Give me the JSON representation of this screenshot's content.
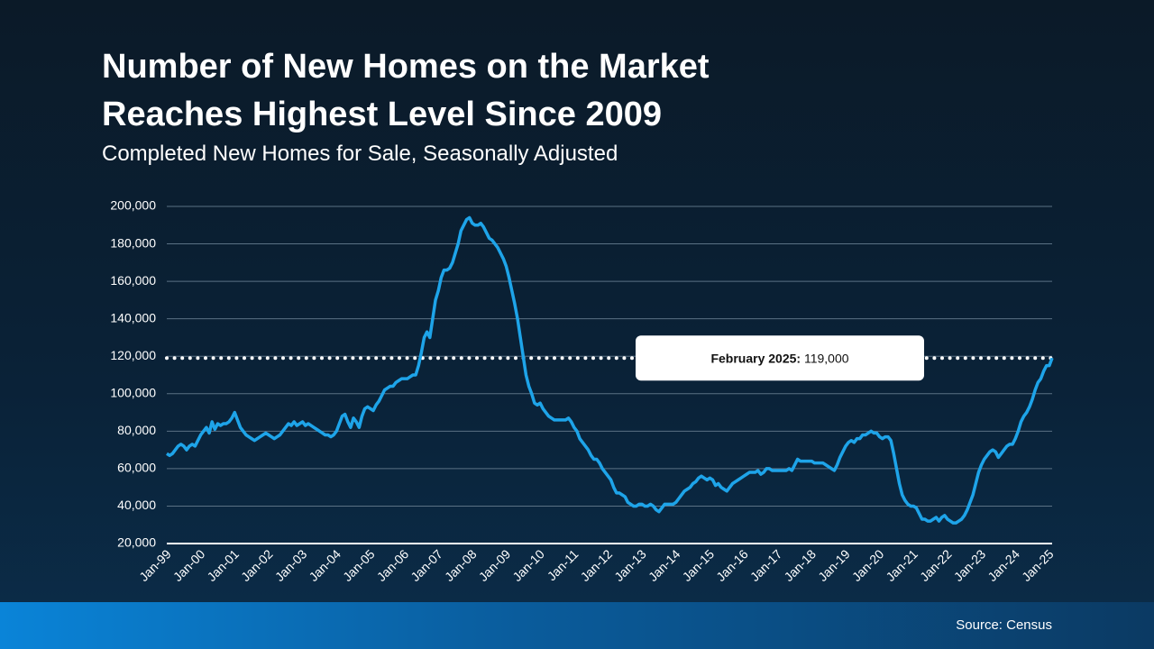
{
  "chart_data": {
    "type": "line",
    "title": "Number of New Homes on the Market Reaches Highest Level Since 2009",
    "subtitle": "Completed New Homes for Sale, Seasonally Adjusted",
    "source": "Source: Census",
    "annotation": {
      "label": "February 2025:",
      "value_label": "119,000",
      "value": 119000
    },
    "categories": [
      "Jan-99",
      null,
      null,
      null,
      null,
      null,
      null,
      null,
      null,
      null,
      null,
      null,
      "Jan-00",
      null,
      null,
      null,
      null,
      null,
      null,
      null,
      null,
      null,
      null,
      null,
      "Jan-01",
      null,
      null,
      null,
      null,
      null,
      null,
      null,
      null,
      null,
      null,
      null,
      "Jan-02",
      null,
      null,
      null,
      null,
      null,
      null,
      null,
      null,
      null,
      null,
      null,
      "Jan-03",
      null,
      null,
      null,
      null,
      null,
      null,
      null,
      null,
      null,
      null,
      null,
      "Jan-04",
      null,
      null,
      null,
      null,
      null,
      null,
      null,
      null,
      null,
      null,
      null,
      "Jan-05",
      null,
      null,
      null,
      null,
      null,
      null,
      null,
      null,
      null,
      null,
      null,
      "Jan-06",
      null,
      null,
      null,
      null,
      null,
      null,
      null,
      null,
      null,
      null,
      null,
      "Jan-07",
      null,
      null,
      null,
      null,
      null,
      null,
      null,
      null,
      null,
      null,
      null,
      "Jan-08",
      null,
      null,
      null,
      null,
      null,
      null,
      null,
      null,
      null,
      null,
      null,
      "Jan-09",
      null,
      null,
      null,
      null,
      null,
      null,
      null,
      null,
      null,
      null,
      null,
      "Jan-10",
      null,
      null,
      null,
      null,
      null,
      null,
      null,
      null,
      null,
      null,
      null,
      "Jan-11",
      null,
      null,
      null,
      null,
      null,
      null,
      null,
      null,
      null,
      null,
      null,
      "Jan-12",
      null,
      null,
      null,
      null,
      null,
      null,
      null,
      null,
      null,
      null,
      null,
      "Jan-13",
      null,
      null,
      null,
      null,
      null,
      null,
      null,
      null,
      null,
      null,
      null,
      "Jan-14",
      null,
      null,
      null,
      null,
      null,
      null,
      null,
      null,
      null,
      null,
      null,
      "Jan-15",
      null,
      null,
      null,
      null,
      null,
      null,
      null,
      null,
      null,
      null,
      null,
      "Jan-16",
      null,
      null,
      null,
      null,
      null,
      null,
      null,
      null,
      null,
      null,
      null,
      "Jan-17",
      null,
      null,
      null,
      null,
      null,
      null,
      null,
      null,
      null,
      null,
      null,
      "Jan-18",
      null,
      null,
      null,
      null,
      null,
      null,
      null,
      null,
      null,
      null,
      null,
      "Jan-19",
      null,
      null,
      null,
      null,
      null,
      null,
      null,
      null,
      null,
      null,
      null,
      "Jan-20",
      null,
      null,
      null,
      null,
      null,
      null,
      null,
      null,
      null,
      null,
      null,
      "Jan-21",
      null,
      null,
      null,
      null,
      null,
      null,
      null,
      null,
      null,
      null,
      null,
      "Jan-22",
      null,
      null,
      null,
      null,
      null,
      null,
      null,
      null,
      null,
      null,
      null,
      "Jan-23",
      null,
      null,
      null,
      null,
      null,
      null,
      null,
      null,
      null,
      null,
      null,
      "Jan-24",
      null,
      null,
      null,
      null,
      null,
      null,
      null,
      null,
      null,
      null,
      null,
      "Jan-25",
      null
    ],
    "series": [
      {
        "name": "Completed New Homes for Sale",
        "color": "#1ea4e9",
        "values": [
          68000,
          67000,
          68000,
          70000,
          72000,
          73000,
          72000,
          70000,
          72000,
          73000,
          72000,
          75000,
          78000,
          80000,
          82000,
          79000,
          85000,
          81000,
          84000,
          83000,
          84000,
          84000,
          85000,
          87000,
          90000,
          86000,
          82000,
          80000,
          78000,
          77000,
          76000,
          75000,
          76000,
          77000,
          78000,
          79000,
          78000,
          77000,
          76000,
          77000,
          78000,
          80000,
          82000,
          84000,
          83000,
          85000,
          83000,
          84000,
          85000,
          83000,
          84000,
          83000,
          82000,
          81000,
          80000,
          79000,
          78000,
          78000,
          77000,
          78000,
          80000,
          84000,
          88000,
          89000,
          85000,
          82000,
          87000,
          85000,
          82000,
          88000,
          92000,
          93000,
          92000,
          91000,
          94000,
          96000,
          99000,
          102000,
          103000,
          104000,
          104000,
          106000,
          107000,
          108000,
          108000,
          108000,
          109000,
          110000,
          110000,
          115000,
          122000,
          130000,
          133000,
          130000,
          140000,
          150000,
          155000,
          162000,
          166000,
          166000,
          167000,
          170000,
          175000,
          180000,
          187000,
          190000,
          193000,
          194000,
          191000,
          190000,
          190000,
          191000,
          189000,
          186000,
          183000,
          182000,
          180000,
          178000,
          175000,
          172000,
          168000,
          162000,
          155000,
          148000,
          140000,
          130000,
          120000,
          110000,
          104000,
          100000,
          95000,
          94000,
          95000,
          92000,
          90000,
          88000,
          87000,
          86000,
          86000,
          86000,
          86000,
          86000,
          87000,
          85000,
          82000,
          80000,
          76000,
          74000,
          72000,
          70000,
          67000,
          65000,
          65000,
          63000,
          60000,
          58000,
          56000,
          54000,
          50000,
          47000,
          47000,
          46000,
          45000,
          42000,
          41000,
          40000,
          40000,
          41000,
          41000,
          40000,
          40000,
          41000,
          40000,
          38000,
          37000,
          39000,
          41000,
          41000,
          41000,
          41000,
          42000,
          44000,
          46000,
          48000,
          49000,
          50000,
          52000,
          53000,
          55000,
          56000,
          55000,
          54000,
          55000,
          54000,
          51000,
          52000,
          50000,
          49000,
          48000,
          50000,
          52000,
          53000,
          54000,
          55000,
          56000,
          57000,
          58000,
          58000,
          58000,
          59000,
          57000,
          58000,
          60000,
          60000,
          59000,
          59000,
          59000,
          59000,
          59000,
          59000,
          60000,
          59000,
          62000,
          65000,
          64000,
          64000,
          64000,
          64000,
          64000,
          63000,
          63000,
          63000,
          63000,
          62000,
          61000,
          60000,
          59000,
          62000,
          66000,
          69000,
          72000,
          74000,
          75000,
          74000,
          76000,
          76000,
          78000,
          78000,
          79000,
          80000,
          79000,
          79000,
          77000,
          76000,
          77000,
          77000,
          75000,
          68000,
          60000,
          52000,
          46000,
          43000,
          41000,
          40000,
          40000,
          39000,
          36000,
          33000,
          33000,
          32000,
          32000,
          33000,
          34000,
          32000,
          34000,
          35000,
          33000,
          32000,
          31000,
          31000,
          32000,
          33000,
          35000,
          38000,
          42000,
          46000,
          52000,
          58000,
          62000,
          65000,
          67000,
          69000,
          70000,
          69000,
          66000,
          68000,
          70000,
          72000,
          73000,
          73000,
          76000,
          80000,
          85000,
          88000,
          90000,
          93000,
          97000,
          102000,
          106000,
          108000,
          112000,
          115000,
          115000,
          119000
        ]
      }
    ],
    "ylim": [
      20000,
      200000
    ],
    "yticks": [
      {
        "value": 20000,
        "label": "20,000"
      },
      {
        "value": 40000,
        "label": "40,000"
      },
      {
        "value": 60000,
        "label": "60,000"
      },
      {
        "value": 80000,
        "label": "80,000"
      },
      {
        "value": 100000,
        "label": "100,000"
      },
      {
        "value": 120000,
        "label": "120,000"
      },
      {
        "value": 140000,
        "label": "140,000"
      },
      {
        "value": 160000,
        "label": "160,000"
      },
      {
        "value": 180000,
        "label": "180,000"
      },
      {
        "value": 200000,
        "label": "200,000"
      }
    ],
    "grid": true
  }
}
